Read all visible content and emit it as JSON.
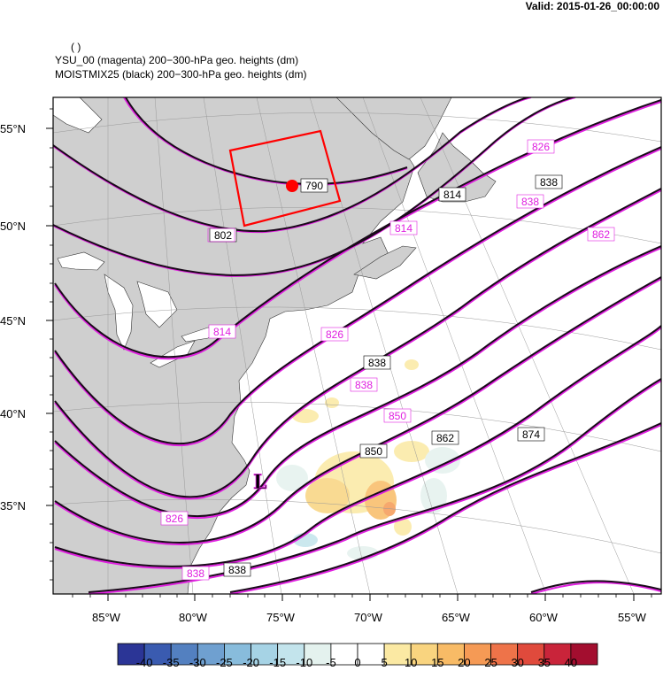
{
  "header": {
    "valid": "Valid: 2015-01-26_00:00:00",
    "paren": "( )",
    "line1": "YSU_00 (magenta) 200−300-hPa geo. heights   (dm)",
    "line2": "MOISTMIX25 (black) 200−300-hPa geo. heights   (dm)"
  },
  "map": {
    "lat_labels": [
      "55°N",
      "50°N",
      "45°N",
      "40°N",
      "35°N"
    ],
    "lon_labels": [
      "85°W",
      "80°W",
      "75°W",
      "70°W",
      "65°W",
      "60°W",
      "55°W"
    ],
    "low_symbol": "L",
    "contour_labels_black": [
      "790",
      "802",
      "814",
      "838",
      "838",
      "850",
      "862",
      "874",
      "838"
    ],
    "contour_labels_magenta": [
      "826",
      "838",
      "814",
      "802",
      "814",
      "826",
      "838",
      "850",
      "862",
      "826",
      "838"
    ],
    "colors": {
      "land": "#cfcfcf",
      "ocean": "#ffffff",
      "contour_black": "#1a0a1a",
      "contour_magenta": "#e020e0",
      "box": "#ff0000",
      "point": "#ff0000"
    }
  },
  "colorbar": {
    "labels": [
      "-40",
      "-35",
      "-30",
      "-25",
      "-20",
      "-15",
      "-10",
      "-5",
      "0",
      "5",
      "10",
      "15",
      "20",
      "25",
      "30",
      "35",
      "40"
    ],
    "colors": [
      "#2b3596",
      "#3a5bb0",
      "#5380c0",
      "#6fa0d0",
      "#88bcdc",
      "#a6d3e5",
      "#c3e4ec",
      "#e4f2ee",
      "#ffffff",
      "#ffffff",
      "#fbe9a3",
      "#f9d47f",
      "#f8bb66",
      "#f59a55",
      "#ee7349",
      "#e04a3c",
      "#c9243a",
      "#a30e2f"
    ]
  }
}
